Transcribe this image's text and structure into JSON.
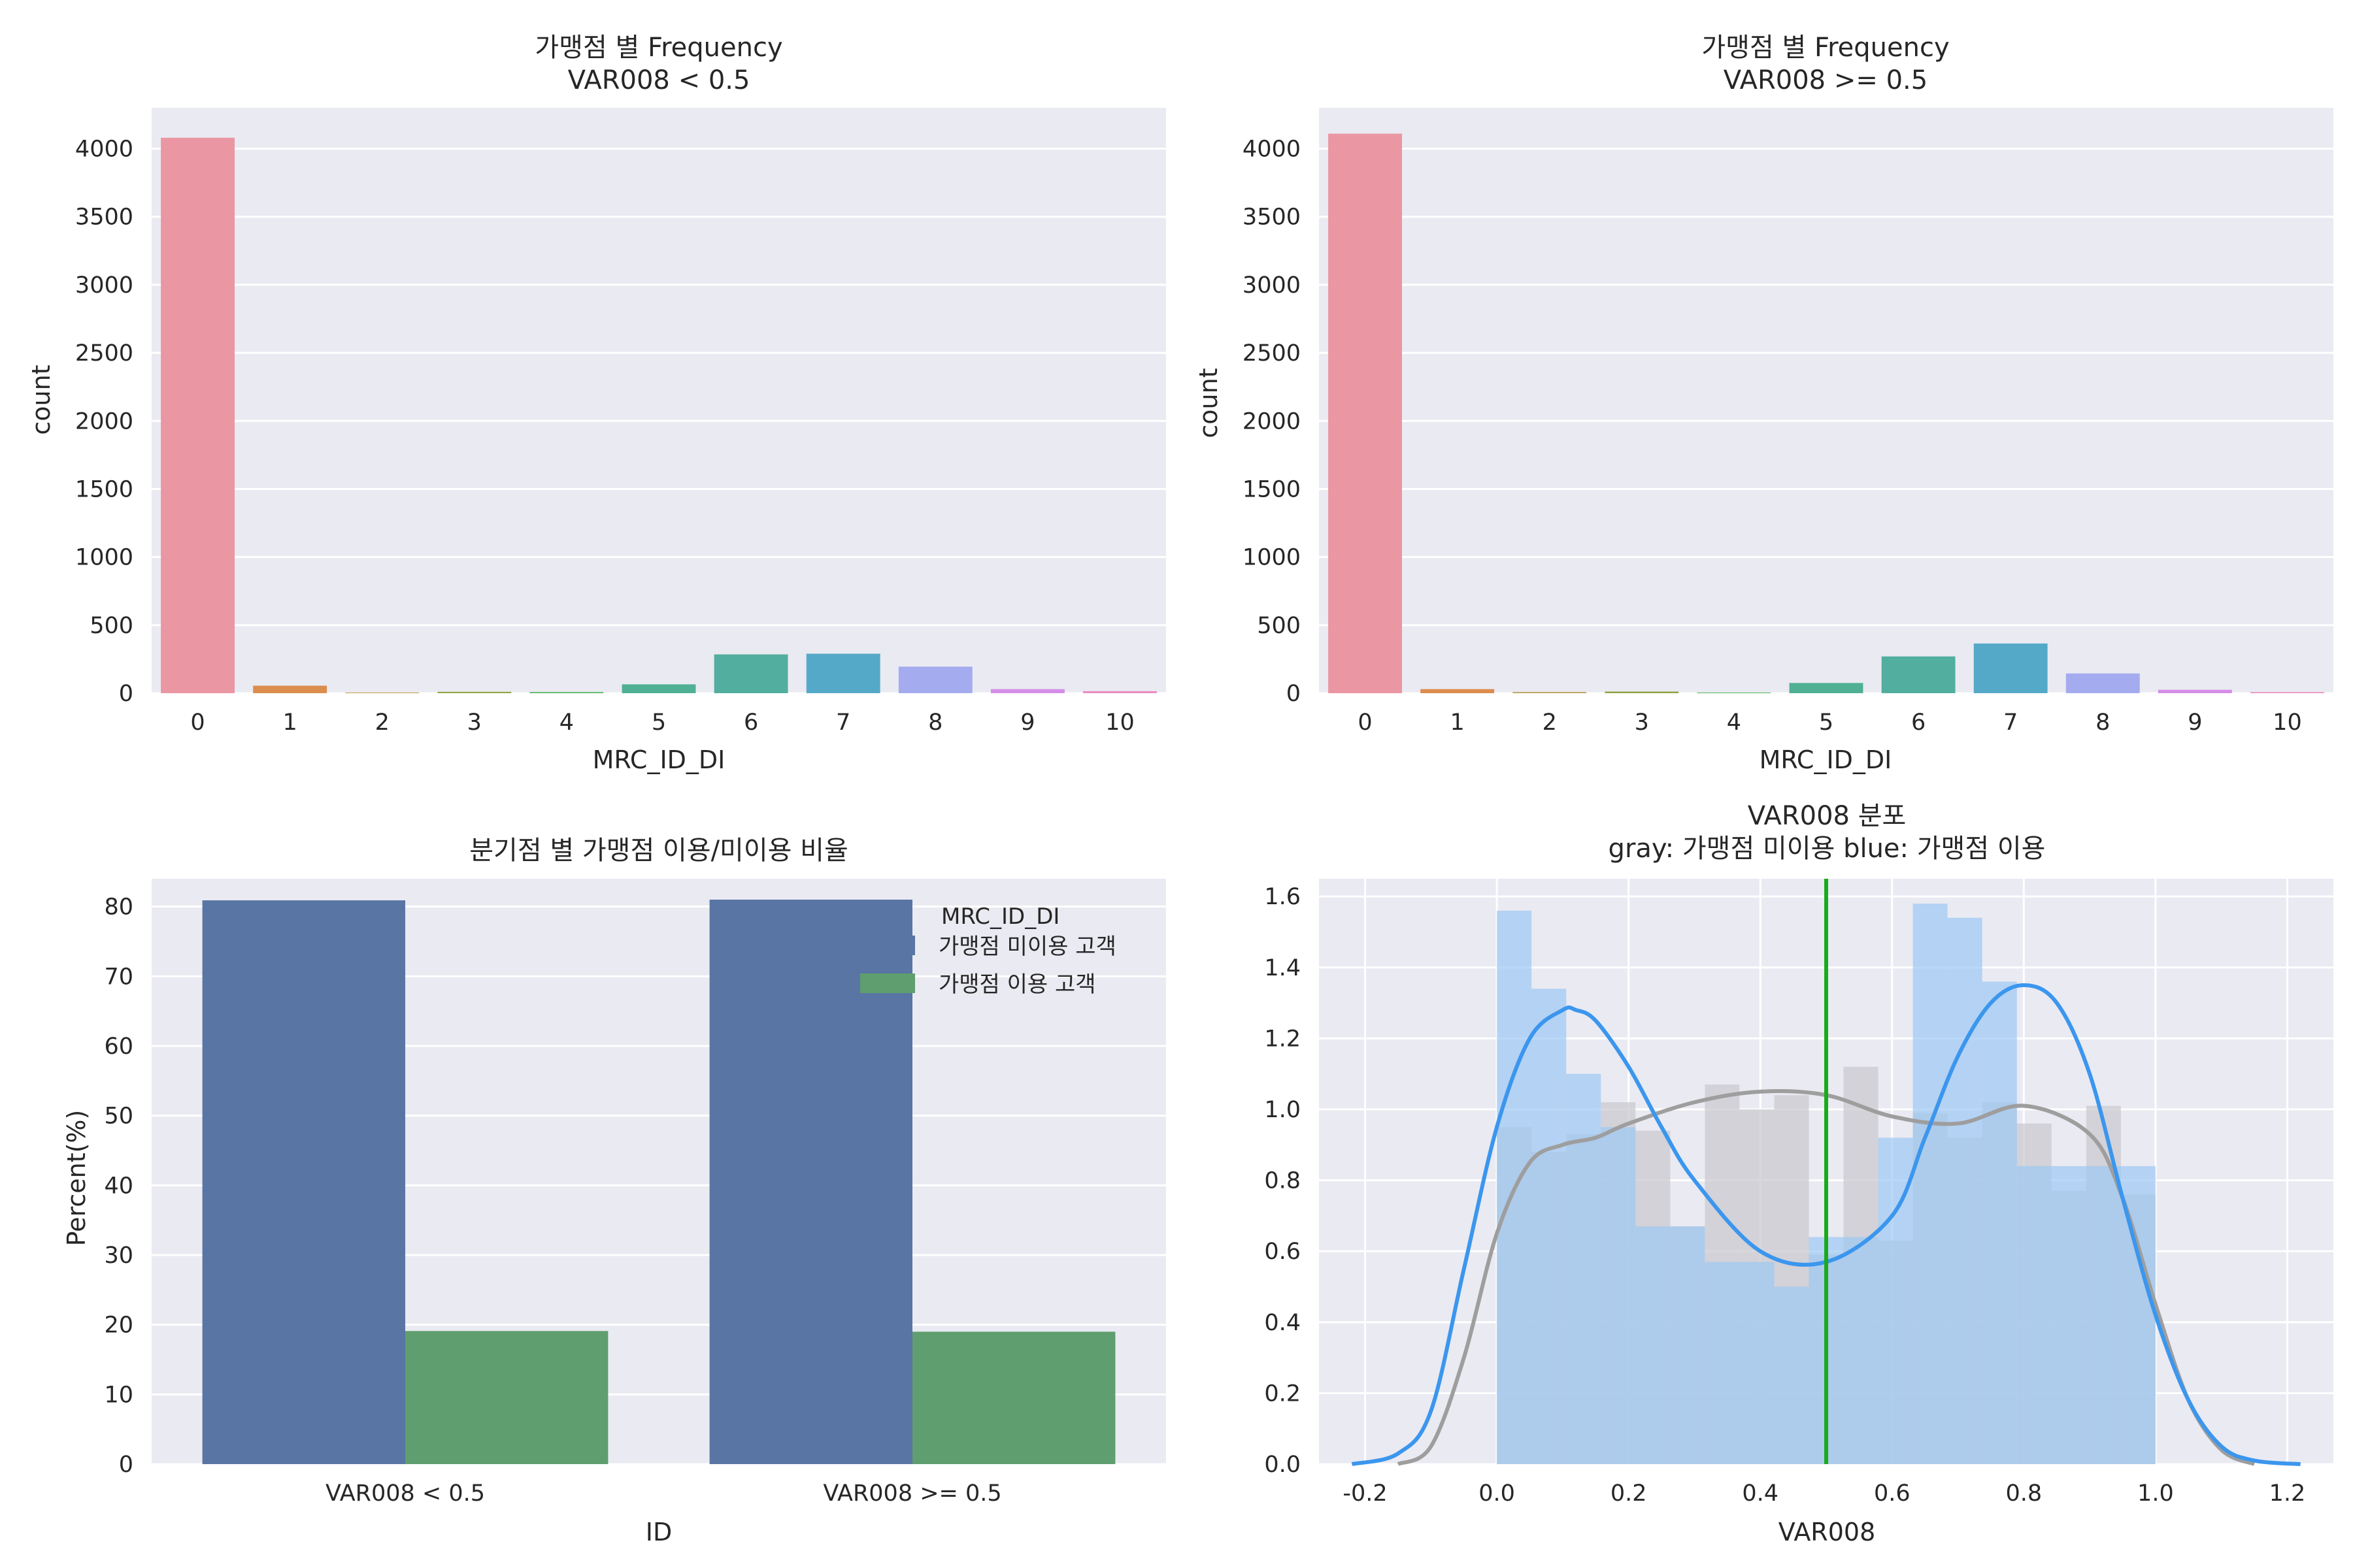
{
  "chart_data": [
    {
      "type": "bar",
      "title_lines": [
        "가맹점 별 Frequency",
        "VAR008 < 0.5"
      ],
      "xlabel": "MRC_ID_DI",
      "ylabel": "count",
      "categories": [
        "0",
        "1",
        "2",
        "3",
        "4",
        "5",
        "6",
        "7",
        "8",
        "9",
        "10"
      ],
      "values": [
        4080,
        55,
        5,
        10,
        8,
        65,
        285,
        290,
        195,
        30,
        15
      ],
      "colors": [
        "#ea96a3",
        "#dc8c4d",
        "#b49b4c",
        "#8fa544",
        "#4eb15a",
        "#50b093",
        "#52ae9f",
        "#55a9c8",
        "#a4abef",
        "#d48ee8",
        "#e98dc0"
      ],
      "ylim": [
        0,
        4300
      ],
      "yticks": [
        0,
        500,
        1000,
        1500,
        2000,
        2500,
        3000,
        3500,
        4000
      ],
      "grid": true
    },
    {
      "type": "bar",
      "title_lines": [
        "가맹점 별 Frequency",
        "VAR008 >= 0.5"
      ],
      "xlabel": "MRC_ID_DI",
      "ylabel": "count",
      "categories": [
        "0",
        "1",
        "2",
        "3",
        "4",
        "5",
        "6",
        "7",
        "8",
        "9",
        "10"
      ],
      "values": [
        4110,
        30,
        8,
        12,
        5,
        75,
        270,
        365,
        145,
        25,
        8
      ],
      "colors": [
        "#ea96a3",
        "#dc8c4d",
        "#b49b4c",
        "#8fa544",
        "#4eb15a",
        "#50b093",
        "#52ae9f",
        "#55a9c8",
        "#a4abef",
        "#d48ee8",
        "#e98dc0"
      ],
      "ylim": [
        0,
        4300
      ],
      "yticks": [
        0,
        500,
        1000,
        1500,
        2000,
        2500,
        3000,
        3500,
        4000
      ],
      "grid": true
    },
    {
      "type": "bar",
      "title_lines": [
        "분기점 별 가맹점 이용/미이용 비율"
      ],
      "xlabel": "ID",
      "ylabel": "Percent(%)",
      "categories": [
        "VAR008 < 0.5",
        "VAR008 >= 0.5"
      ],
      "series": [
        {
          "name": "가맹점 미이용 고객",
          "values": [
            80.9,
            81.0
          ],
          "color": "#5975a4"
        },
        {
          "name": "가맹점 이용 고객",
          "values": [
            19.1,
            19.0
          ],
          "color": "#5f9e6e"
        }
      ],
      "legend_title": "MRC_ID_DI",
      "legend_position": "top-right",
      "ylim": [
        0,
        84
      ],
      "yticks": [
        0,
        10,
        20,
        30,
        40,
        50,
        60,
        70,
        80
      ],
      "grid": true
    },
    {
      "type": "area",
      "subtype": "histogram-kde",
      "title_lines": [
        "VAR008 분포",
        "gray: 가맹점 미이용    blue: 가맹점 이용"
      ],
      "xlabel": "VAR008",
      "xlim": [
        -0.27,
        1.27
      ],
      "ylim": [
        0,
        1.65
      ],
      "xticks": [
        -0.2,
        0.0,
        0.2,
        0.4,
        0.6,
        0.8,
        1.0,
        1.2
      ],
      "yticks": [
        0.0,
        0.2,
        0.4,
        0.6,
        0.8,
        1.0,
        1.2,
        1.4,
        1.6
      ],
      "bin_edges": [
        0.0,
        0.0526,
        0.1053,
        0.1579,
        0.2105,
        0.2632,
        0.3158,
        0.3684,
        0.4211,
        0.4737,
        0.5263,
        0.5789,
        0.6316,
        0.6842,
        0.7368,
        0.7895,
        0.8421,
        0.8947,
        0.9474,
        1.0
      ],
      "threshold": 0.5,
      "threshold_color": "#1aab1a",
      "series": [
        {
          "name": "gray",
          "hist_color": "#c8c8cd",
          "line_color": "#9e9e9e",
          "hist": [
            0.95,
            0.88,
            0.93,
            1.02,
            0.94,
            0.67,
            1.07,
            1.0,
            1.04,
            0.59,
            1.12,
            0.63,
            0.99,
            0.92,
            1.02,
            0.96,
            0.77,
            1.01,
            0.76
          ],
          "kde_x": [
            -0.15,
            -0.1,
            -0.05,
            0.0,
            0.05,
            0.1,
            0.15,
            0.2,
            0.3,
            0.4,
            0.5,
            0.6,
            0.7,
            0.8,
            0.9,
            0.95,
            1.0,
            1.05,
            1.1,
            1.15
          ],
          "kde_y": [
            0.0,
            0.05,
            0.3,
            0.65,
            0.85,
            0.9,
            0.92,
            0.96,
            1.02,
            1.05,
            1.04,
            0.98,
            0.96,
            1.01,
            0.93,
            0.75,
            0.45,
            0.18,
            0.04,
            0.0
          ]
        },
        {
          "name": "blue",
          "hist_color": "#9cc8f3",
          "line_color": "#3b96ee",
          "hist": [
            1.56,
            1.34,
            1.1,
            0.95,
            0.67,
            0.67,
            0.57,
            0.57,
            0.5,
            0.64,
            0.64,
            0.92,
            1.58,
            1.54,
            1.36,
            0.84,
            0.84,
            0.84,
            0.84
          ],
          "kde_x": [
            -0.22,
            -0.15,
            -0.1,
            -0.05,
            0.0,
            0.05,
            0.1,
            0.12,
            0.15,
            0.2,
            0.25,
            0.3,
            0.4,
            0.5,
            0.6,
            0.65,
            0.7,
            0.75,
            0.8,
            0.85,
            0.9,
            0.95,
            1.0,
            1.05,
            1.1,
            1.15,
            1.22
          ],
          "kde_y": [
            0.0,
            0.03,
            0.15,
            0.55,
            0.95,
            1.2,
            1.28,
            1.28,
            1.25,
            1.12,
            0.95,
            0.8,
            0.6,
            0.57,
            0.7,
            0.92,
            1.15,
            1.3,
            1.35,
            1.3,
            1.1,
            0.75,
            0.42,
            0.18,
            0.05,
            0.01,
            0.0
          ]
        }
      ],
      "grid": true
    }
  ]
}
